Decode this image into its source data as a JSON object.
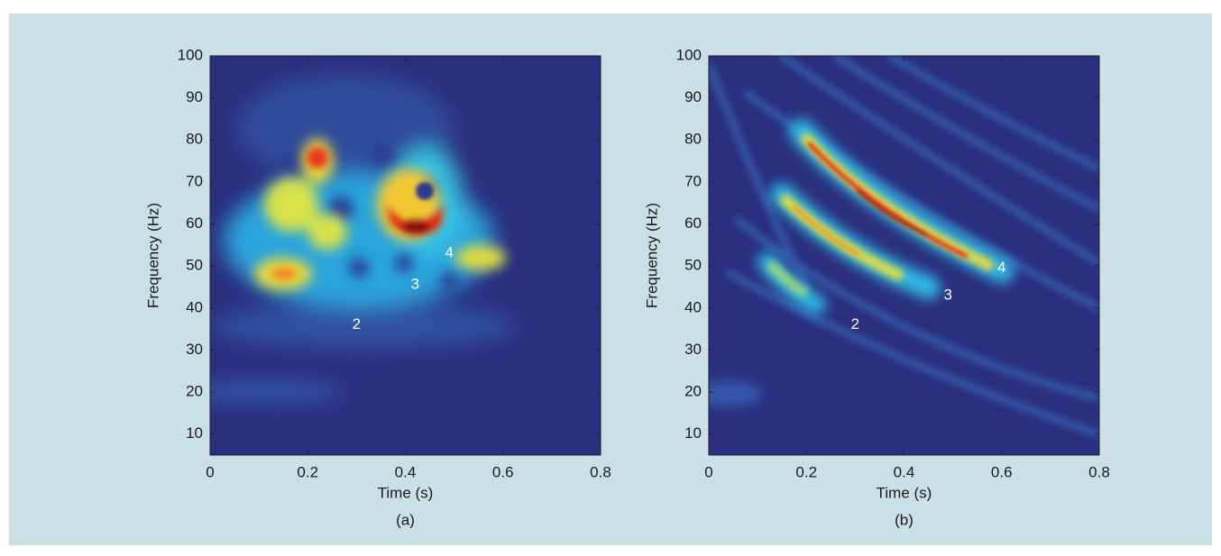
{
  "chart_data": [
    {
      "type": "heatmap",
      "label": "(a)",
      "xlabel": "Time (s)",
      "ylabel": "Frequency (Hz)",
      "xlim": [
        0,
        0.8
      ],
      "xticks": [
        0,
        0.2,
        0.4,
        0.6,
        0.8
      ],
      "ylim": [
        5,
        100
      ],
      "yticks": [
        10,
        20,
        30,
        40,
        50,
        60,
        70,
        80,
        90,
        100
      ],
      "annotations": [
        {
          "text": "2",
          "x": 0.3,
          "y": 36
        },
        {
          "text": "3",
          "x": 0.42,
          "y": 45.5
        },
        {
          "text": "4",
          "x": 0.49,
          "y": 53
        }
      ]
    },
    {
      "type": "heatmap",
      "label": "(b)",
      "xlabel": "Time (s)",
      "ylabel": "Frequency (Hz)",
      "xlim": [
        0,
        0.8
      ],
      "xticks": [
        0,
        0.2,
        0.4,
        0.6,
        0.8
      ],
      "ylim": [
        5,
        100
      ],
      "yticks": [
        10,
        20,
        30,
        40,
        50,
        60,
        70,
        80,
        90,
        100
      ],
      "annotations": [
        {
          "text": "2",
          "x": 0.3,
          "y": 36
        },
        {
          "text": "3",
          "x": 0.49,
          "y": 43
        },
        {
          "text": "4",
          "x": 0.6,
          "y": 49.5
        }
      ]
    }
  ]
}
